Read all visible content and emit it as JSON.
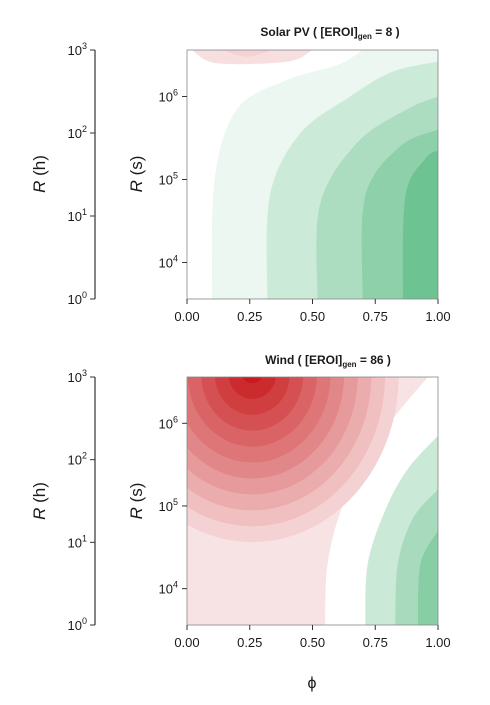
{
  "chart_data": [
    {
      "type": "heatmap",
      "title_main": "Solar PV ( [EROI]",
      "title_sub": "gen",
      "title_end": " = 8 )",
      "xlabel": "",
      "ylabel": "R (s)",
      "outer_ylabel": "R (h)",
      "xlim": [
        0,
        1
      ],
      "ylim_log10_seconds": [
        3.56,
        6.56
      ],
      "x_ticks": [
        "0.00",
        "0.25",
        "0.50",
        "0.75",
        "1.00"
      ],
      "y_ticks": [
        {
          "base": "10",
          "exp": "4"
        },
        {
          "base": "10",
          "exp": "5"
        },
        {
          "base": "10",
          "exp": "6"
        }
      ],
      "outer_y_ticks": [
        {
          "base": "10",
          "exp": "0"
        },
        {
          "base": "10",
          "exp": "1"
        },
        {
          "base": "10",
          "exp": "2"
        },
        {
          "base": "10",
          "exp": "3"
        }
      ],
      "colors": {
        "positive": "#3aae6a",
        "negative": "#c8191c",
        "neutral": "#ffffff"
      },
      "zero_contour": [
        [
          0.1,
          3.56
        ],
        [
          0.11,
          5.0
        ],
        [
          0.2,
          5.85
        ],
        [
          0.4,
          6.2
        ],
        [
          0.6,
          6.38
        ],
        [
          0.7,
          6.56
        ]
      ],
      "positive_bands": [
        {
          "level": 1,
          "curve": [
            [
              0.32,
              3.56
            ],
            [
              0.33,
              4.8
            ],
            [
              0.45,
              5.55
            ],
            [
              0.65,
              6.0
            ],
            [
              0.82,
              6.3
            ],
            [
              1.0,
              6.42
            ]
          ]
        },
        {
          "level": 2,
          "curve": [
            [
              0.52,
              3.56
            ],
            [
              0.53,
              4.7
            ],
            [
              0.68,
              5.45
            ],
            [
              0.88,
              5.85
            ],
            [
              1.0,
              6.0
            ]
          ]
        },
        {
          "level": 3,
          "curve": [
            [
              0.7,
              3.56
            ],
            [
              0.71,
              4.8
            ],
            [
              0.85,
              5.4
            ],
            [
              1.0,
              5.6
            ]
          ]
        },
        {
          "level": 4,
          "curve": [
            [
              0.86,
              3.56
            ],
            [
              0.87,
              4.8
            ],
            [
              0.95,
              5.25
            ],
            [
              1.0,
              5.35
            ]
          ]
        }
      ],
      "negative_bands": [
        {
          "level": 1,
          "curve": [
            [
              0.02,
              6.56
            ],
            [
              0.12,
              6.4
            ],
            [
              0.4,
              6.42
            ],
            [
              0.5,
              6.56
            ]
          ]
        },
        {
          "level": 2,
          "curve": [
            [
              0.14,
              6.56
            ],
            [
              0.24,
              6.48
            ],
            [
              0.34,
              6.56
            ]
          ]
        }
      ]
    },
    {
      "type": "heatmap",
      "title_main": "Wind ( [EROI]",
      "title_sub": "gen",
      "title_end": " = 86 )",
      "xlabel": "ϕ",
      "ylabel": "R (s)",
      "outer_ylabel": "R (h)",
      "xlim": [
        0,
        1
      ],
      "ylim_log10_seconds": [
        3.56,
        6.56
      ],
      "x_ticks": [
        "0.00",
        "0.25",
        "0.50",
        "0.75",
        "1.00"
      ],
      "y_ticks": [
        {
          "base": "10",
          "exp": "4"
        },
        {
          "base": "10",
          "exp": "5"
        },
        {
          "base": "10",
          "exp": "6"
        }
      ],
      "outer_y_ticks": [
        {
          "base": "10",
          "exp": "0"
        },
        {
          "base": "10",
          "exp": "1"
        },
        {
          "base": "10",
          "exp": "2"
        },
        {
          "base": "10",
          "exp": "3"
        }
      ],
      "colors": {
        "positive": "#3aae6a",
        "negative": "#c8191c",
        "neutral": "#ffffff"
      },
      "zero_contour": [
        [
          0.55,
          3.56
        ],
        [
          0.56,
          4.3
        ],
        [
          0.62,
          5.0
        ],
        [
          0.72,
          5.55
        ],
        [
          0.82,
          6.05
        ],
        [
          0.96,
          6.56
        ]
      ],
      "positive_bands": [
        {
          "level": 1,
          "curve": [
            [
              0.71,
              3.56
            ],
            [
              0.72,
              4.3
            ],
            [
              0.79,
              4.95
            ],
            [
              0.88,
              5.45
            ],
            [
              1.0,
              5.85
            ]
          ]
        },
        {
          "level": 2,
          "curve": [
            [
              0.83,
              3.56
            ],
            [
              0.84,
              4.3
            ],
            [
              0.9,
              4.85
            ],
            [
              1.0,
              5.2
            ]
          ]
        },
        {
          "level": 3,
          "curve": [
            [
              0.92,
              3.56
            ],
            [
              0.93,
              4.3
            ],
            [
              1.0,
              4.7
            ]
          ]
        }
      ],
      "negative_peak": [
        0.26,
        6.56
      ],
      "negative_levels": 11
    }
  ]
}
